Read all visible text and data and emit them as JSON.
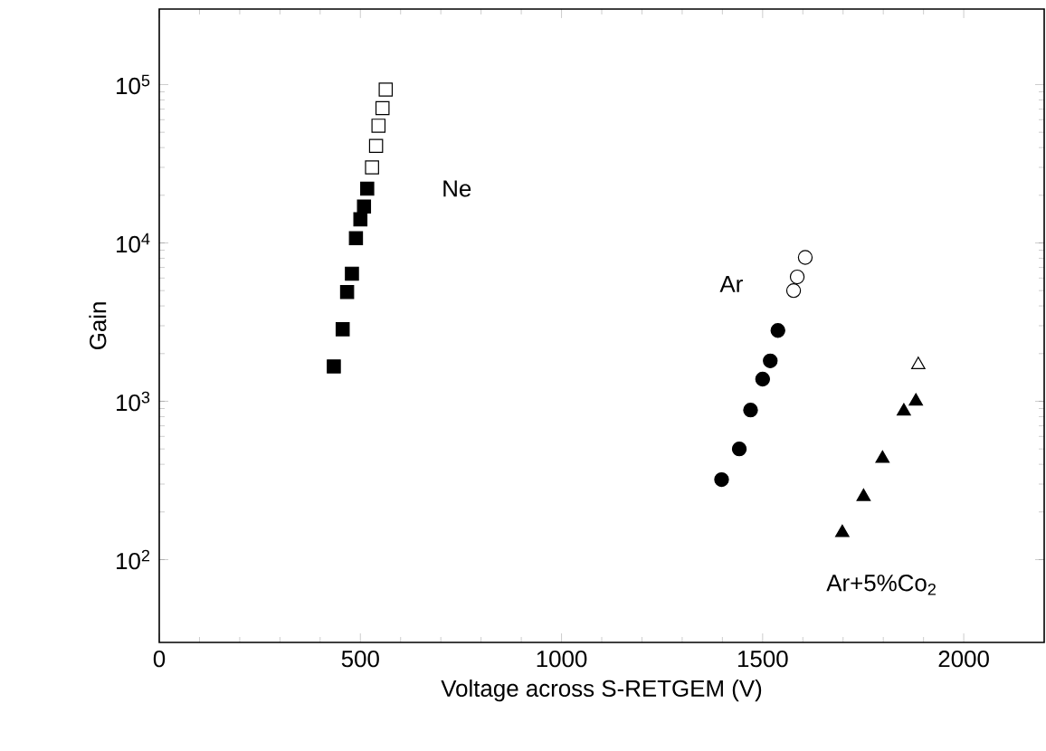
{
  "chart_data": {
    "type": "scatter",
    "xlabel": "Voltage across S-RETGEM (V)",
    "ylabel": "Gain",
    "log": "y",
    "xlim": [
      0,
      2200
    ],
    "xticks": [
      0,
      500,
      1000,
      1500,
      2000
    ],
    "ylim": [
      30,
      300000
    ],
    "yticks": [
      {
        "value": 100,
        "label": "10$^{2}$"
      },
      {
        "value": 1000,
        "label": "10$^{3}$"
      },
      {
        "value": 10000,
        "label": "10$^{4}$"
      },
      {
        "value": 100000,
        "label": "10$^{5}$"
      }
    ],
    "grid": false,
    "series": [
      {
        "name": "Ne",
        "color": "#000000",
        "marker": "square",
        "x": [
          434,
          456,
          467,
          479,
          489,
          500,
          509,
          517
        ],
        "values": [
          1660,
          2850,
          4900,
          6400,
          10700,
          14100,
          17000,
          22000
        ]
      },
      {
        "color": "#ffffff",
        "marker": "square",
        "x": [
          529,
          539,
          545,
          555,
          563
        ],
        "values": [
          30000,
          41000,
          55000,
          71000,
          93000
        ]
      },
      {
        "name": "Ar",
        "color": "#000000",
        "marker": "circle",
        "x": [
          1398,
          1442,
          1470,
          1500,
          1519,
          1538
        ],
        "values": [
          320,
          500,
          880,
          1380,
          1800,
          2800
        ]
      },
      {
        "color": "#ffffff",
        "marker": "circle",
        "x": [
          1577,
          1586,
          1606
        ],
        "values": [
          5000,
          6100,
          8100
        ]
      },
      {
        "name": "Ar+5%Co$_{2}$",
        "color": "#000000",
        "marker": "triangle",
        "x": [
          1698,
          1751,
          1798,
          1851,
          1881
        ],
        "values": [
          148,
          250,
          435,
          865,
          1000
        ]
      },
      {
        "color": "#ffffff",
        "marker": "triangle",
        "x": [
          1887
        ],
        "values": [
          1700
        ]
      }
    ]
  }
}
